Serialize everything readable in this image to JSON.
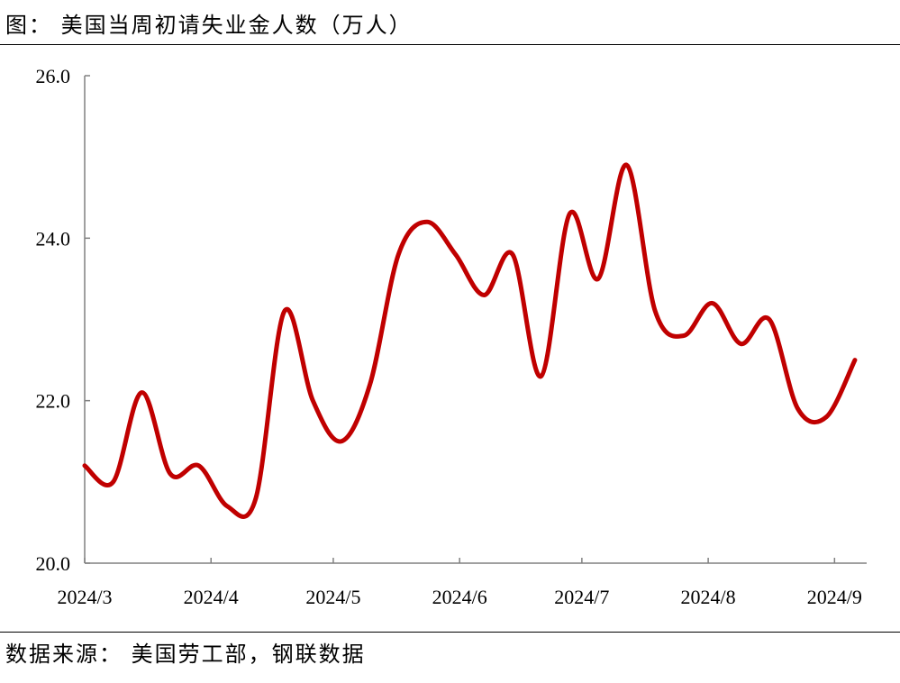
{
  "header": {
    "title": "图：  美国当周初请失业金人数（万人）"
  },
  "footer": {
    "source": "数据来源：  美国劳工部，钢联数据"
  },
  "colors": {
    "line": "#c00000",
    "axis": "#808080",
    "text": "#000000"
  },
  "chart_data": {
    "type": "line",
    "title": "",
    "xlabel": "",
    "ylabel": "",
    "ylim": [
      20.0,
      26.0
    ],
    "y_ticks": [
      "20.0",
      "22.0",
      "24.0",
      "26.0"
    ],
    "y_tick_values": [
      20,
      22,
      24,
      26
    ],
    "x_ticks": [
      "2024/3",
      "2024/4",
      "2024/5",
      "2024/6",
      "2024/7",
      "2024/8",
      "2024/9"
    ],
    "x_tick_dates": [
      "2024-03-01",
      "2024-04-01",
      "2024-05-01",
      "2024-06-01",
      "2024-07-01",
      "2024-08-01",
      "2024-09-01"
    ],
    "xlim": [
      "2024-03-01",
      "2024-09-08"
    ],
    "grid": false,
    "series": [
      {
        "name": "",
        "x": [
          "2024-03-01",
          "2024-03-08",
          "2024-03-15",
          "2024-03-22",
          "2024-03-29",
          "2024-04-05",
          "2024-04-12",
          "2024-04-19",
          "2024-04-26",
          "2024-05-03",
          "2024-05-10",
          "2024-05-17",
          "2024-05-24",
          "2024-05-31",
          "2024-06-07",
          "2024-06-14",
          "2024-06-21",
          "2024-06-28",
          "2024-07-05",
          "2024-07-12",
          "2024-07-19",
          "2024-07-26",
          "2024-08-02",
          "2024-08-09",
          "2024-08-16",
          "2024-08-23",
          "2024-08-30",
          "2024-09-06"
        ],
        "y": [
          21.2,
          21.0,
          22.1,
          21.1,
          21.2,
          20.7,
          20.8,
          23.1,
          22.0,
          21.5,
          22.2,
          23.8,
          24.2,
          23.8,
          23.3,
          23.8,
          22.3,
          24.3,
          23.5,
          24.9,
          23.1,
          22.8,
          23.2,
          22.7,
          23.0,
          21.9,
          21.8,
          22.5
        ]
      }
    ]
  }
}
